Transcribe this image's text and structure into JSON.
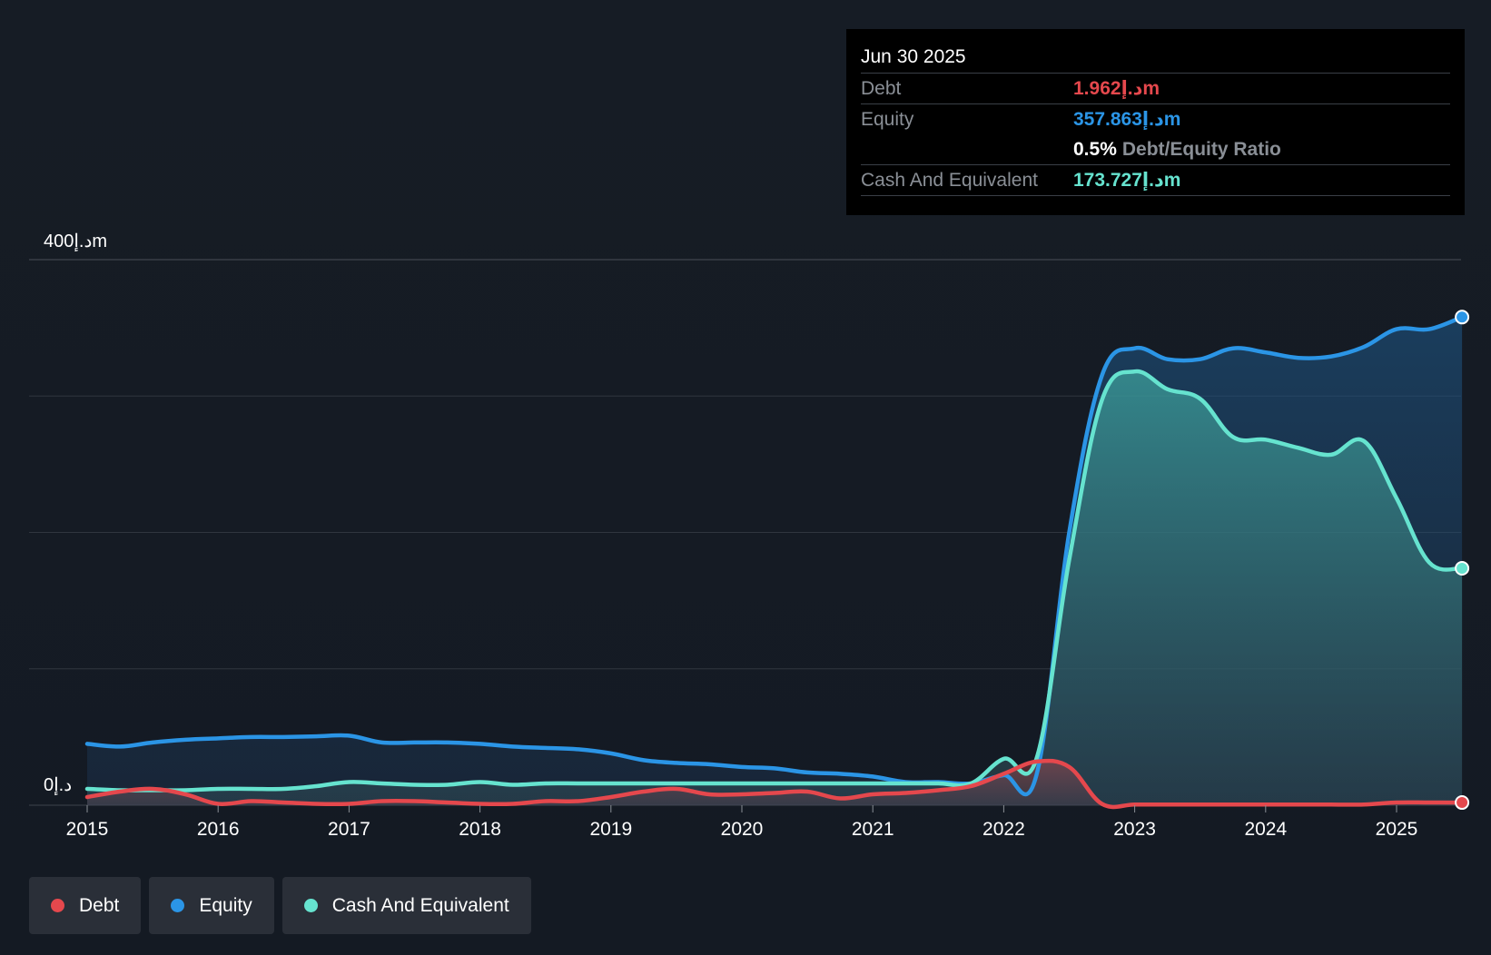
{
  "colors": {
    "debt": "#e5484d",
    "equity": "#2b95e6",
    "cash": "#66e3cf",
    "background": "#151b24"
  },
  "tooltip": {
    "date": "Jun 30 2025",
    "debt_label": "Debt",
    "debt_value": "1.962د.إm",
    "equity_label": "Equity",
    "equity_value": "357.863د.إm",
    "ratio_value": "0.5%",
    "ratio_label": "Debt/Equity Ratio",
    "cash_label": "Cash And Equivalent",
    "cash_value": "173.727د.إm"
  },
  "legend": {
    "debt": "Debt",
    "equity": "Equity",
    "cash": "Cash And Equivalent"
  },
  "chart_data": {
    "type": "area",
    "title": "",
    "xlabel": "",
    "ylabel": "",
    "y_unit": "د.إm",
    "ylim": [
      0,
      400
    ],
    "y_tick_labels": {
      "top": "400د.إm",
      "bottom": "0د.إ"
    },
    "x_tick_labels": [
      "2015",
      "2016",
      "2017",
      "2018",
      "2019",
      "2020",
      "2021",
      "2022",
      "2023",
      "2024",
      "2025"
    ],
    "x_ticks": [
      2015,
      2016,
      2017,
      2018,
      2019,
      2020,
      2021,
      2022,
      2023,
      2024,
      2025
    ],
    "xlim": [
      2015,
      2025.5
    ],
    "gridlines": [
      0,
      100,
      200,
      300,
      400
    ],
    "highlight_x": 2022.75,
    "series": [
      {
        "name": "Equity",
        "key": "equity",
        "points": [
          [
            2015.0,
            45
          ],
          [
            2015.25,
            43
          ],
          [
            2015.5,
            46
          ],
          [
            2015.75,
            48
          ],
          [
            2016.0,
            49
          ],
          [
            2016.25,
            50
          ],
          [
            2016.5,
            50
          ],
          [
            2016.75,
            50.5
          ],
          [
            2017.0,
            51
          ],
          [
            2017.25,
            46
          ],
          [
            2017.5,
            46
          ],
          [
            2017.75,
            46
          ],
          [
            2018.0,
            45
          ],
          [
            2018.25,
            43
          ],
          [
            2018.5,
            42
          ],
          [
            2018.75,
            41
          ],
          [
            2019.0,
            38
          ],
          [
            2019.25,
            33
          ],
          [
            2019.5,
            31
          ],
          [
            2019.75,
            30
          ],
          [
            2020.0,
            28
          ],
          [
            2020.25,
            27
          ],
          [
            2020.5,
            24
          ],
          [
            2020.75,
            23
          ],
          [
            2021.0,
            21
          ],
          [
            2021.25,
            17
          ],
          [
            2021.5,
            17
          ],
          [
            2021.75,
            16
          ],
          [
            2022.0,
            22
          ],
          [
            2022.25,
            22
          ],
          [
            2022.5,
            200
          ],
          [
            2022.75,
            315
          ],
          [
            2023.0,
            335
          ],
          [
            2023.25,
            327
          ],
          [
            2023.5,
            327
          ],
          [
            2023.75,
            335
          ],
          [
            2024.0,
            332
          ],
          [
            2024.25,
            328
          ],
          [
            2024.5,
            329
          ],
          [
            2024.75,
            336
          ],
          [
            2025.0,
            349
          ],
          [
            2025.25,
            349
          ],
          [
            2025.5,
            357.863
          ]
        ]
      },
      {
        "name": "Cash And Equivalent",
        "key": "cash",
        "points": [
          [
            2015.0,
            12
          ],
          [
            2015.25,
            11
          ],
          [
            2015.5,
            11
          ],
          [
            2015.75,
            11
          ],
          [
            2016.0,
            12
          ],
          [
            2016.25,
            12
          ],
          [
            2016.5,
            12
          ],
          [
            2016.75,
            14
          ],
          [
            2017.0,
            17
          ],
          [
            2017.25,
            16
          ],
          [
            2017.5,
            15
          ],
          [
            2017.75,
            15
          ],
          [
            2018.0,
            17
          ],
          [
            2018.25,
            15
          ],
          [
            2018.5,
            16
          ],
          [
            2018.75,
            16
          ],
          [
            2019.0,
            16
          ],
          [
            2019.25,
            16
          ],
          [
            2019.5,
            16
          ],
          [
            2019.75,
            16
          ],
          [
            2020.0,
            16
          ],
          [
            2020.25,
            16
          ],
          [
            2020.5,
            16
          ],
          [
            2020.75,
            16
          ],
          [
            2021.0,
            16
          ],
          [
            2021.25,
            16
          ],
          [
            2021.5,
            16
          ],
          [
            2021.75,
            16
          ],
          [
            2022.0,
            34
          ],
          [
            2022.25,
            34
          ],
          [
            2022.5,
            180
          ],
          [
            2022.75,
            297
          ],
          [
            2023.0,
            318
          ],
          [
            2023.25,
            305
          ],
          [
            2023.5,
            298
          ],
          [
            2023.75,
            270
          ],
          [
            2024.0,
            268
          ],
          [
            2024.25,
            262
          ],
          [
            2024.5,
            257
          ],
          [
            2024.75,
            267
          ],
          [
            2025.0,
            225
          ],
          [
            2025.25,
            178
          ],
          [
            2025.5,
            173.727
          ]
        ]
      },
      {
        "name": "Debt",
        "key": "debt",
        "points": [
          [
            2015.0,
            6
          ],
          [
            2015.25,
            10
          ],
          [
            2015.5,
            12
          ],
          [
            2015.75,
            8
          ],
          [
            2016.0,
            1
          ],
          [
            2016.25,
            3
          ],
          [
            2016.5,
            2
          ],
          [
            2016.75,
            1
          ],
          [
            2017.0,
            1
          ],
          [
            2017.25,
            3
          ],
          [
            2017.5,
            3
          ],
          [
            2017.75,
            2
          ],
          [
            2018.0,
            1
          ],
          [
            2018.25,
            1
          ],
          [
            2018.5,
            3
          ],
          [
            2018.75,
            3
          ],
          [
            2019.0,
            6
          ],
          [
            2019.25,
            10
          ],
          [
            2019.5,
            12
          ],
          [
            2019.75,
            8
          ],
          [
            2020.0,
            8
          ],
          [
            2020.25,
            9
          ],
          [
            2020.5,
            10
          ],
          [
            2020.75,
            5
          ],
          [
            2021.0,
            8
          ],
          [
            2021.25,
            9
          ],
          [
            2021.5,
            11
          ],
          [
            2021.75,
            14
          ],
          [
            2022.0,
            23
          ],
          [
            2022.25,
            32
          ],
          [
            2022.5,
            28
          ],
          [
            2022.75,
            1
          ],
          [
            2023.0,
            0.5
          ],
          [
            2023.25,
            0.5
          ],
          [
            2023.5,
            0.5
          ],
          [
            2023.75,
            0.5
          ],
          [
            2024.0,
            0.5
          ],
          [
            2024.25,
            0.5
          ],
          [
            2024.5,
            0.5
          ],
          [
            2024.75,
            0.5
          ],
          [
            2025.0,
            2
          ],
          [
            2025.25,
            2
          ],
          [
            2025.5,
            1.962
          ]
        ]
      }
    ]
  }
}
